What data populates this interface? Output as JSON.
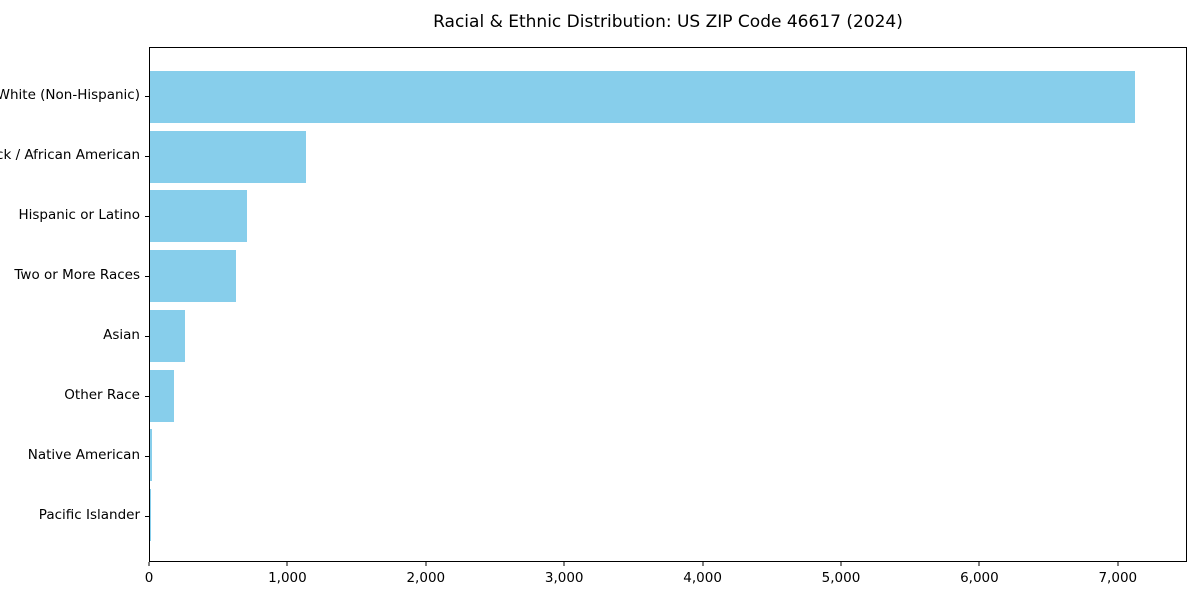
{
  "figure": {
    "background_color": "#ffffff",
    "axis_color": "#000000",
    "text_color": "#000000"
  },
  "chart_data": {
    "type": "bar",
    "orientation": "horizontal",
    "title": "Racial & Ethnic Distribution: US ZIP Code 46617 (2024)",
    "xlabel": "",
    "ylabel": "",
    "grid": false,
    "legend": null,
    "bar_color": "#87ceeb",
    "categories": [
      "White (Non-Hispanic)",
      "Black / African American",
      "Hispanic or Latino",
      "Two or More Races",
      "Asian",
      "Other Race",
      "Native American",
      "Pacific Islander"
    ],
    "values": [
      7130,
      1130,
      700,
      620,
      250,
      175,
      15,
      5
    ],
    "xlim": [
      0,
      7500
    ],
    "xticks": [
      0,
      1000,
      2000,
      3000,
      4000,
      5000,
      6000,
      7000
    ],
    "xtick_labels": [
      "0",
      "1,000",
      "2,000",
      "3,000",
      "4,000",
      "5,000",
      "6,000",
      "7,000"
    ]
  }
}
